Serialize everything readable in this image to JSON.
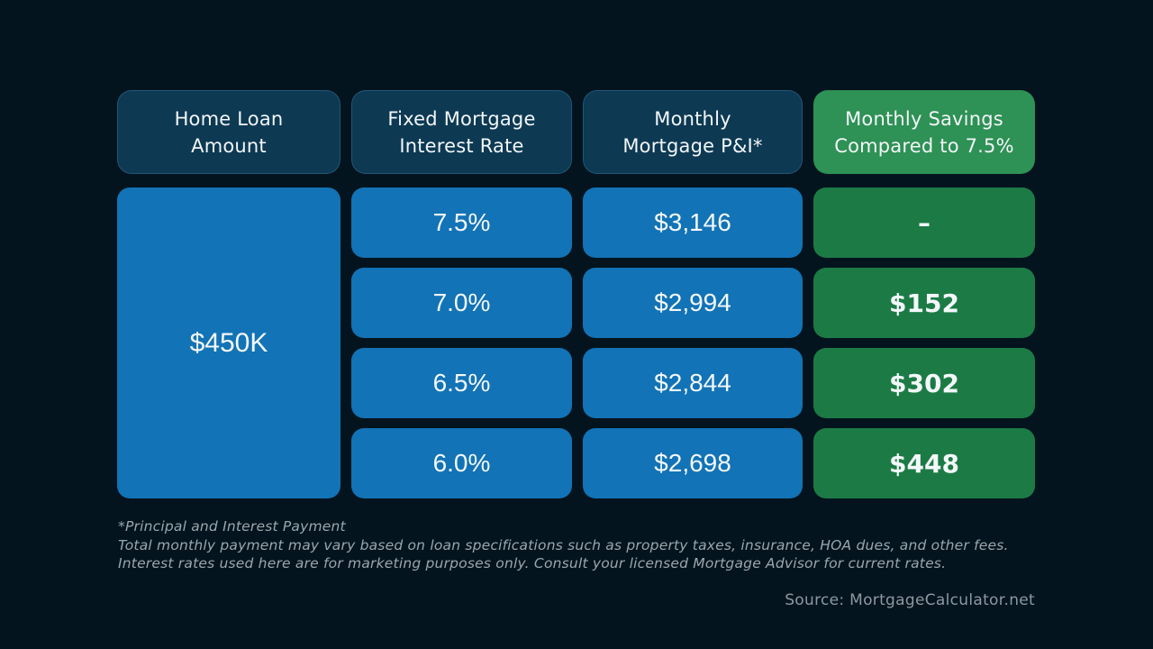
{
  "colors": {
    "background": "#04141e",
    "header_navy": "#0d3953",
    "header_green": "#2e9155",
    "cell_blue": "#1273b6",
    "cell_green": "#1c7b45",
    "text_white": "#f4f8fa",
    "footnote_gray": "#9aa6ad"
  },
  "table": {
    "headers": [
      {
        "line1": "Home Loan",
        "line2": "Amount"
      },
      {
        "line1": "Fixed Mortgage",
        "line2": "Interest Rate"
      },
      {
        "line1": "Monthly",
        "line2": "Mortgage P&I*"
      },
      {
        "line1": "Monthly Savings",
        "line2": "Compared to 7.5%"
      }
    ],
    "loan_amount": "$450K",
    "rows": [
      {
        "rate": "7.5%",
        "payment": "$3,146",
        "savings": "–"
      },
      {
        "rate": "7.0%",
        "payment": "$2,994",
        "savings": "$152"
      },
      {
        "rate": "6.5%",
        "payment": "$2,844",
        "savings": "$302"
      },
      {
        "rate": "6.0%",
        "payment": "$2,698",
        "savings": "$448"
      }
    ]
  },
  "footnotes": {
    "line1": "*Principal and Interest Payment",
    "line2": "Total monthly payment may vary based on loan specifications such as property taxes, insurance, HOA dues, and other fees. Interest rates used here are for marketing purposes only. Consult your licensed Mortgage Advisor for current rates.",
    "source": "Source: MortgageCalculator.net"
  },
  "chart_data": {
    "type": "table",
    "title": "Monthly mortgage payment and savings by interest rate for a $450K home loan",
    "columns": [
      "Home Loan Amount",
      "Fixed Mortgage Interest Rate",
      "Monthly Mortgage P&I*",
      "Monthly Savings Compared to 7.5%"
    ],
    "rows": [
      [
        "$450K",
        "7.5%",
        "$3,146",
        "–"
      ],
      [
        "$450K",
        "7.0%",
        "$2,994",
        "$152"
      ],
      [
        "$450K",
        "6.5%",
        "$2,844",
        "$302"
      ],
      [
        "$450K",
        "6.0%",
        "$2,698",
        "$448"
      ]
    ],
    "numeric": {
      "loan_amount_usd": 450000,
      "interest_rates_pct": [
        7.5,
        7.0,
        6.5,
        6.0
      ],
      "monthly_payment_usd": [
        3146,
        2994,
        2844,
        2698
      ],
      "monthly_savings_usd": [
        0,
        152,
        302,
        448
      ]
    },
    "notes": "*Principal and Interest Payment. Total monthly payment may vary based on loan specifications such as property taxes, insurance, HOA dues, and other fees. Interest rates used here are for marketing purposes only. Consult your licensed Mortgage Advisor for current rates.",
    "source": "MortgageCalculator.net"
  }
}
